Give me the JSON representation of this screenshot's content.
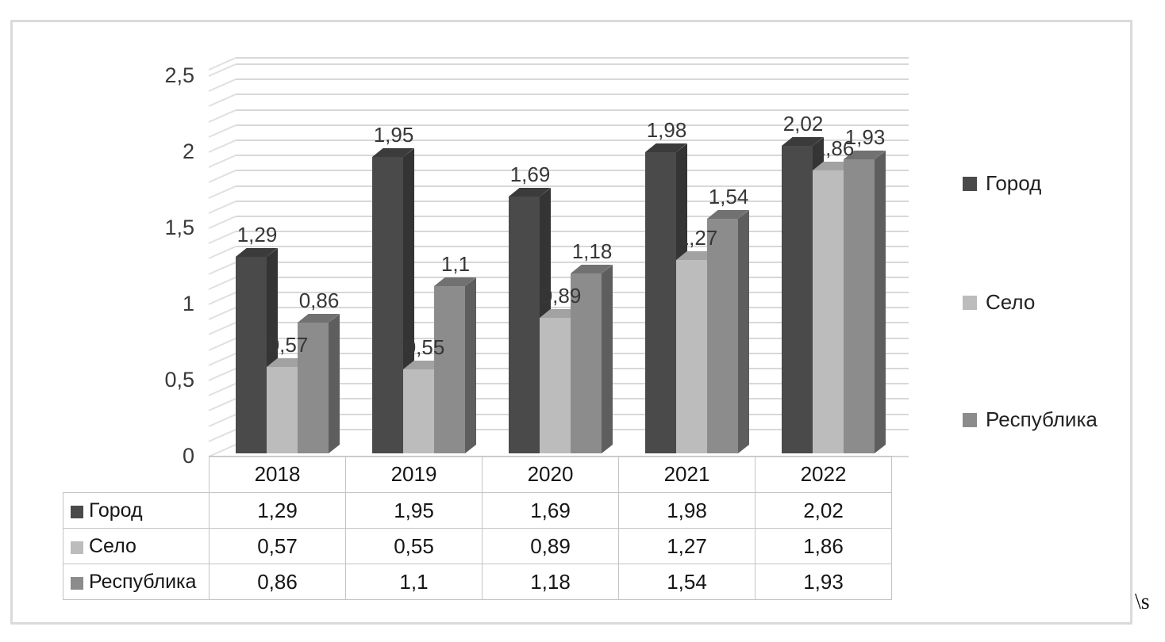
{
  "chart_data": {
    "type": "bar",
    "style": "3d-clustered-column",
    "title": "",
    "xlabel": "",
    "ylabel": "",
    "categories": [
      "2018",
      "2019",
      "2020",
      "2021",
      "2022"
    ],
    "series": [
      {
        "name": "Город",
        "color": "#4a4a4a",
        "top_color": "#3b3b3b",
        "side_color": "#343434",
        "values": [
          1.29,
          1.95,
          1.69,
          1.98,
          2.02
        ],
        "labels": [
          "1,29",
          "1,95",
          "1,69",
          "1,98",
          "2,02"
        ]
      },
      {
        "name": "Село",
        "color": "#bcbcbc",
        "top_color": "#a2a2a2",
        "side_color": "#919191",
        "values": [
          0.57,
          0.55,
          0.89,
          1.27,
          1.86
        ],
        "labels": [
          "0,57",
          "0,55",
          "0,89",
          "1,27",
          "1,86"
        ]
      },
      {
        "name": "Республика",
        "color": "#8c8c8c",
        "top_color": "#717171",
        "side_color": "#5e5e5e",
        "values": [
          0.86,
          1.1,
          1.18,
          1.54,
          1.93
        ],
        "labels": [
          "0,86",
          "1,1",
          "1,18",
          "1,54",
          "1,93"
        ]
      }
    ],
    "y_axis": {
      "ticks": [
        "0",
        "0,5",
        "1",
        "1,5",
        "2",
        "2,5"
      ],
      "tick_values": [
        0,
        0.5,
        1,
        1.5,
        2,
        2.5
      ],
      "min": 0,
      "max": 2.5,
      "minor_step": 0.1
    },
    "grid": true,
    "legend_position": "right"
  },
  "table": {
    "header": [
      "",
      "2018",
      "2019",
      "2020",
      "2021",
      "2022"
    ],
    "rows": [
      {
        "label": "Город",
        "cells": [
          "1,29",
          "1,95",
          "1,69",
          "1,98",
          "2,02"
        ]
      },
      {
        "label": "Село",
        "cells": [
          "0,57",
          "0,55",
          "0,89",
          "1,27",
          "1,86"
        ]
      },
      {
        "label": "Республика",
        "cells": [
          "0,86",
          "1,1",
          "1,18",
          "1,54",
          "1,93"
        ]
      }
    ]
  },
  "footer_mark": "\\s"
}
